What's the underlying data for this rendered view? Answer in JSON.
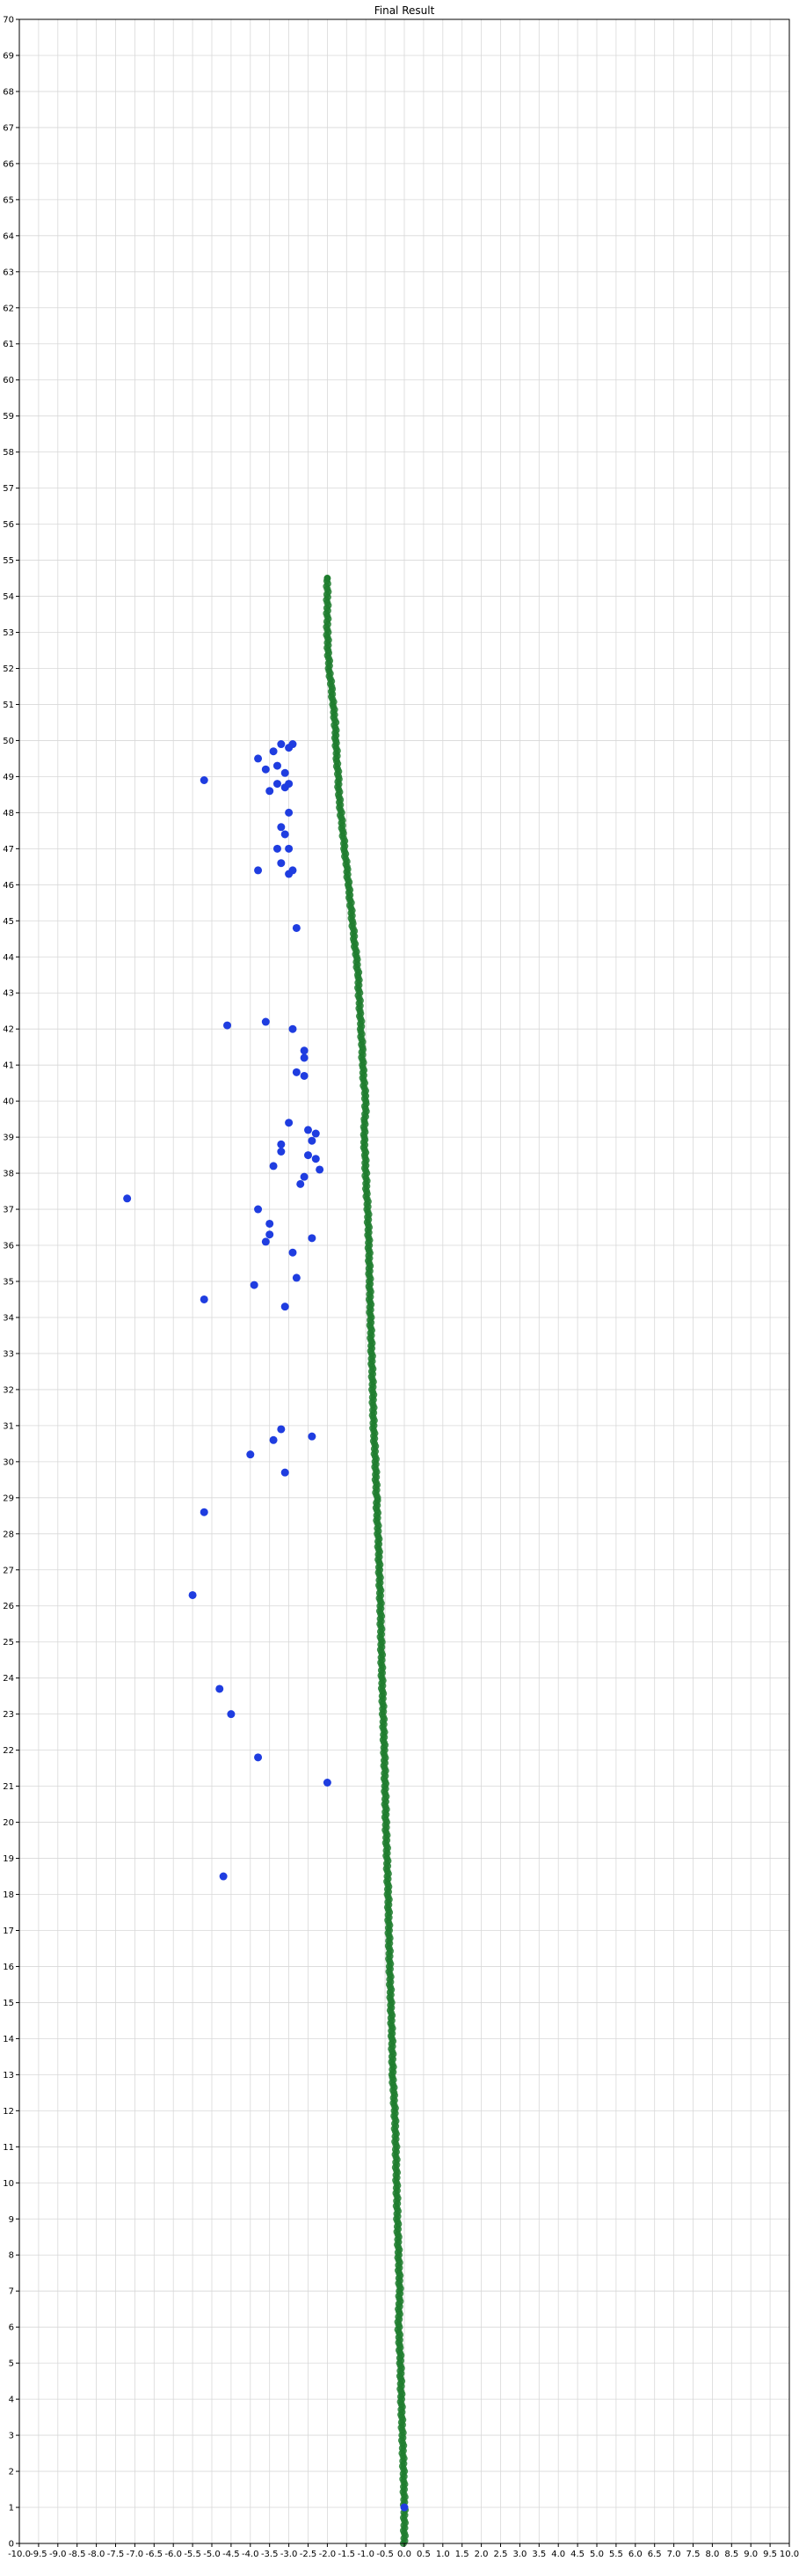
{
  "chart_data": {
    "type": "scatter",
    "title": "Final Result",
    "xlabel": "",
    "ylabel": "",
    "xlim": [
      -10.0,
      10.0
    ],
    "ylim": [
      0,
      70
    ],
    "x_ticks": [
      "-10.0",
      "-9.5",
      "-9.0",
      "-8.5",
      "-8.0",
      "-7.5",
      "-7.0",
      "-6.5",
      "-6.0",
      "-5.5",
      "-5.0",
      "-4.5",
      "-4.0",
      "-3.5",
      "-3.0",
      "-2.5",
      "-2.0",
      "-1.5",
      "-1.0",
      "-0.5",
      "0.0",
      "0.5",
      "1.0",
      "1.5",
      "2.0",
      "2.5",
      "3.0",
      "3.5",
      "4.0",
      "4.5",
      "5.0",
      "5.5",
      "6.0",
      "6.5",
      "7.0",
      "7.5",
      "8.0",
      "8.5",
      "9.0",
      "9.5",
      "10.0"
    ],
    "y_ticks": [
      "0",
      "1",
      "2",
      "3",
      "4",
      "5",
      "6",
      "7",
      "8",
      "9",
      "10",
      "11",
      "12",
      "13",
      "14",
      "15",
      "16",
      "17",
      "18",
      "19",
      "20",
      "21",
      "22",
      "23",
      "24",
      "25",
      "26",
      "27",
      "28",
      "29",
      "30",
      "31",
      "32",
      "33",
      "34",
      "35",
      "36",
      "37",
      "38",
      "39",
      "40",
      "41",
      "42",
      "43",
      "44",
      "45",
      "46",
      "47",
      "48",
      "49",
      "50",
      "51",
      "52",
      "53",
      "54",
      "55",
      "56",
      "57",
      "58",
      "59",
      "60",
      "61",
      "62",
      "63",
      "64",
      "65",
      "66",
      "67",
      "68",
      "69",
      "70"
    ],
    "grid": true,
    "colors": {
      "path": "#1e7d2e",
      "points": "#1f3de0"
    },
    "series": [
      {
        "style": "path",
        "x": [
          0.0,
          0.0,
          -0.02,
          -0.05,
          -0.08,
          -0.1,
          -0.12,
          -0.15,
          -0.12,
          -0.15,
          -0.18,
          -0.2,
          -0.22,
          -0.25,
          -0.28,
          -0.3,
          -0.32,
          -0.35,
          -0.38,
          -0.4,
          -0.42,
          -0.45,
          -0.48,
          -0.5,
          -0.52,
          -0.55,
          -0.58,
          -0.6,
          -0.62,
          -0.65,
          -0.68,
          -0.7,
          -0.72,
          -0.75,
          -0.8,
          -0.82,
          -0.85,
          -0.88,
          -0.9,
          -0.92,
          -0.95,
          -0.98,
          -1.0,
          -1.02,
          -1.05,
          -1.02,
          -1.0,
          -1.05,
          -1.08,
          -1.1,
          -1.12,
          -1.15,
          -1.18,
          -1.2,
          -1.25,
          -1.3,
          -1.35,
          -1.4,
          -1.45,
          -1.5,
          -1.55,
          -1.6,
          -1.65,
          -1.7,
          -1.72,
          -1.75,
          -1.78,
          -1.8,
          -1.85,
          -1.9,
          -1.95,
          -1.98,
          -2.0,
          -2.0
        ],
        "y": [
          0.0,
          1.0,
          2.0,
          3.0,
          4.0,
          5.0,
          5.5,
          6.0,
          7.0,
          8.0,
          9.0,
          10.0,
          11.0,
          12.0,
          12.5,
          13.0,
          14.0,
          15.0,
          16.0,
          17.0,
          18.0,
          19.0,
          20.0,
          21.0,
          22.0,
          23.0,
          24.0,
          25.0,
          26.0,
          27.0,
          28.0,
          28.3,
          29.0,
          30.0,
          31.0,
          32.0,
          33.0,
          34.0,
          35.0,
          36.0,
          37.0,
          37.5,
          38.0,
          38.5,
          39.0,
          39.5,
          40.0,
          40.5,
          41.0,
          41.5,
          42.0,
          42.5,
          43.0,
          43.5,
          44.0,
          44.5,
          45.0,
          45.5,
          46.0,
          46.5,
          47.0,
          47.5,
          48.0,
          48.5,
          49.0,
          49.5,
          50.0,
          50.5,
          51.0,
          51.5,
          52.0,
          52.5,
          53.0,
          54.5
        ]
      },
      {
        "style": "points",
        "x": [
          0.0,
          -4.7,
          -2.0,
          -3.8,
          -4.5,
          -4.8,
          -5.5,
          -5.2,
          -3.1,
          -3.4,
          -4.0,
          -2.4,
          -3.2,
          -3.1,
          -5.2,
          -2.8,
          -3.9,
          -3.6,
          -3.5,
          -3.8,
          -2.9,
          -2.4,
          -3.5,
          -7.2,
          -2.7,
          -2.6,
          -2.2,
          -3.4,
          -3.2,
          -2.3,
          -2.5,
          -3.2,
          -2.4,
          -2.3,
          -2.5,
          -3.0,
          -2.8,
          -2.6,
          -2.6,
          -2.9,
          -3.6,
          -2.8,
          -4.6,
          -2.6,
          -3.8,
          -3.0,
          -2.9,
          -3.2,
          -3.0,
          -3.3,
          -3.1,
          -3.2,
          -3.0,
          -3.1,
          -3.0,
          -3.5,
          -3.3,
          -3.1,
          -3.6,
          -3.8,
          -3.4,
          -3.2,
          -2.9,
          -3.0,
          -3.3,
          -5.2
        ],
        "y": [
          1.0,
          18.5,
          21.1,
          21.8,
          23.0,
          23.7,
          26.3,
          28.6,
          29.7,
          30.6,
          30.2,
          30.7,
          30.9,
          34.3,
          34.5,
          35.1,
          34.9,
          36.1,
          36.3,
          37.0,
          35.8,
          36.2,
          36.6,
          37.3,
          37.7,
          37.9,
          38.1,
          38.2,
          38.6,
          38.4,
          38.5,
          38.8,
          38.9,
          39.1,
          39.2,
          39.4,
          40.8,
          40.7,
          41.2,
          42.0,
          42.2,
          44.8,
          42.1,
          41.4,
          46.4,
          46.3,
          46.4,
          46.6,
          47.0,
          47.0,
          47.4,
          47.6,
          48.0,
          48.7,
          48.8,
          48.6,
          48.8,
          49.1,
          49.2,
          49.5,
          49.7,
          49.9,
          49.9,
          49.8,
          49.3,
          48.9
        ]
      }
    ]
  }
}
